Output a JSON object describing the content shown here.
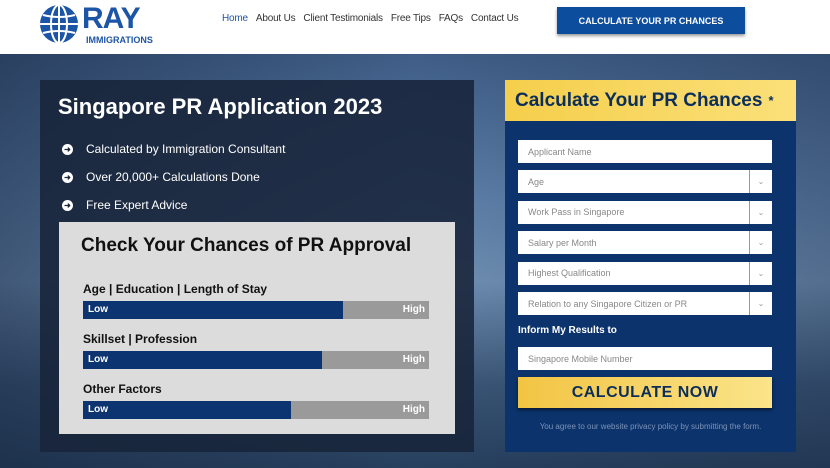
{
  "header": {
    "logo": {
      "name": "RAY",
      "sub": "IMMIGRATIONS"
    },
    "nav": [
      "Home",
      "About Us",
      "Client Testimonials",
      "Free Tips",
      "FAQs",
      "Contact Us"
    ],
    "active_nav": "Home",
    "cta": "CALCULATE YOUR PR CHANCES"
  },
  "hero": {
    "title": "Singapore PR Application 2023",
    "bullets": [
      "Calculated by Immigration Consultant",
      "Over 20,000+ Calculations Done",
      "Free Expert Advice"
    ],
    "card": {
      "title": "Check Your Chances of PR Approval",
      "factors": [
        {
          "label": "Age | Education | Length of Stay",
          "low": "Low",
          "high": "High",
          "level": 0.75
        },
        {
          "label": "Skillset | Profession",
          "low": "Low",
          "high": "High",
          "level": 0.69
        },
        {
          "label": "Other Factors",
          "low": "Low",
          "high": "High",
          "level": 0.6
        }
      ]
    }
  },
  "form": {
    "title": "Calculate Your PR Chances",
    "star": "*",
    "fields": [
      {
        "placeholder": "Applicant Name",
        "select": false
      },
      {
        "placeholder": "Age",
        "select": true
      },
      {
        "placeholder": "Work Pass in Singapore",
        "select": true
      },
      {
        "placeholder": "Salary per Month",
        "select": true
      },
      {
        "placeholder": "Highest Qualification",
        "select": true
      },
      {
        "placeholder": "Relation to any Singapore Citizen or PR",
        "select": true
      }
    ],
    "inform_label": "Inform My Results to",
    "mobile_placeholder": "Singapore Mobile Number",
    "submit": "CALCULATE NOW",
    "note": "You agree to our website privacy policy by submitting the form."
  },
  "colors": {
    "brand": "#1d55a6",
    "navy": "#0c336b",
    "gold": "#f5cf4b"
  }
}
